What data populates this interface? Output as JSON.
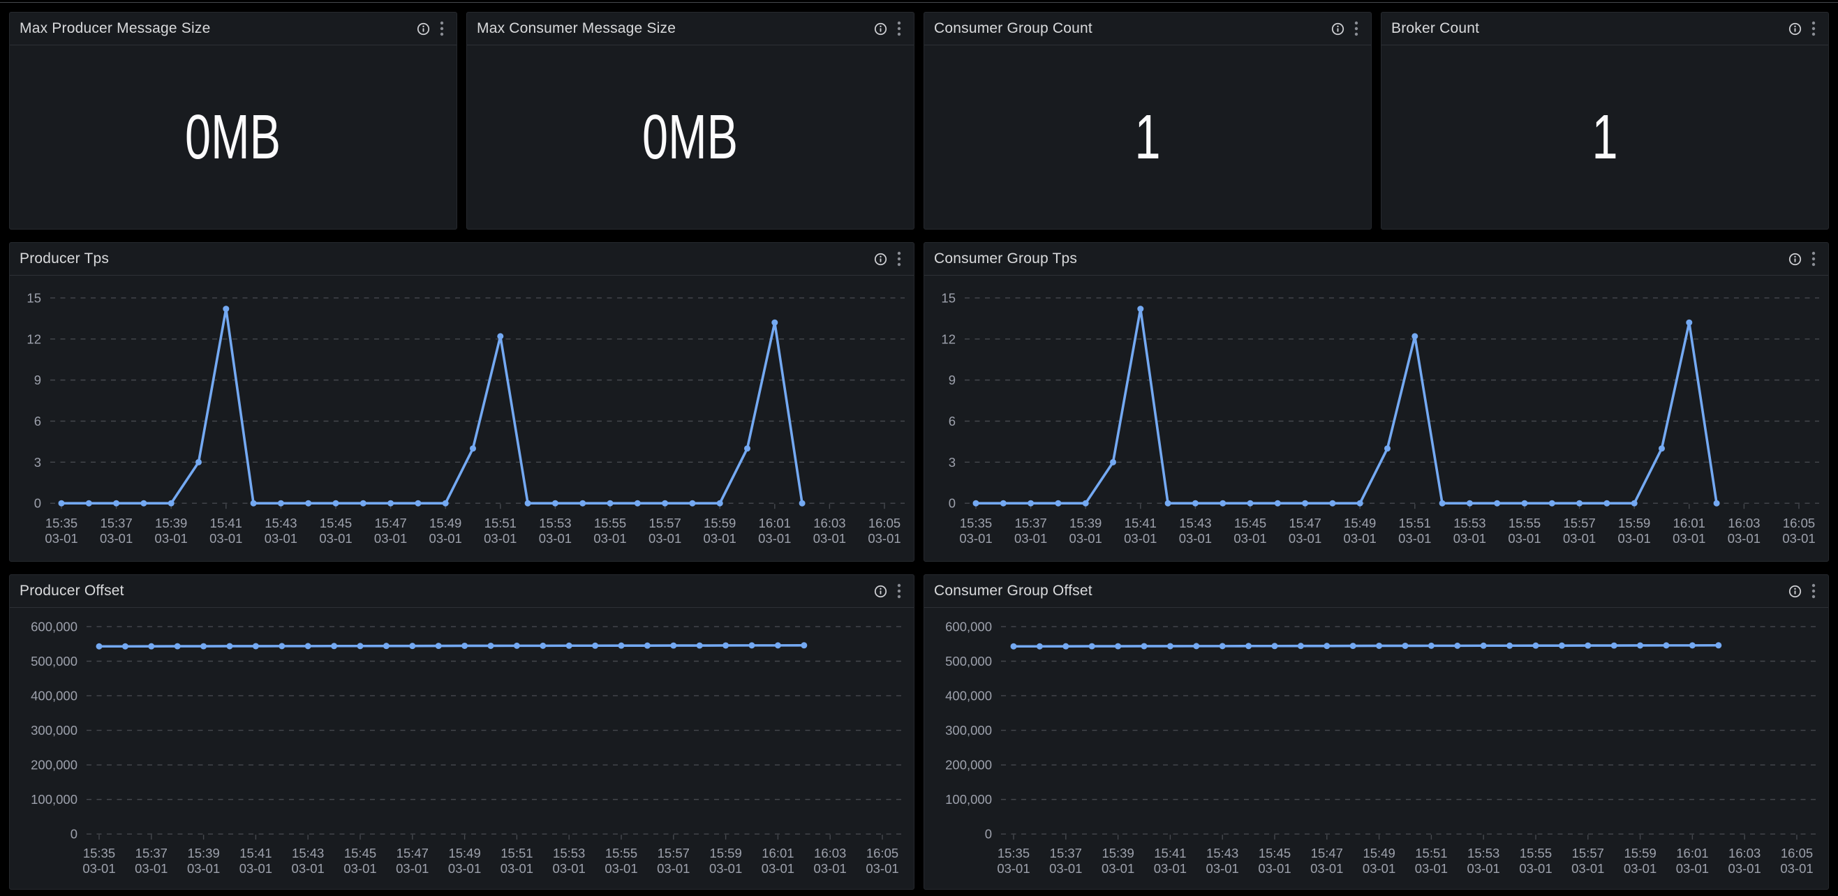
{
  "page": {
    "background": "#000000",
    "panel_background": "#181b1f",
    "top_divider_color": "#46484d",
    "series_color": "#74a9f2",
    "axis_text_color": "#9da1ac",
    "title_text_color": "#d9dadc",
    "grid_line_color": "#45484e"
  },
  "icons": {
    "info": "info-circle-icon",
    "menu": "kebab-vertical-icon"
  },
  "stat_panels": [
    {
      "title": "Max Producer Message Size",
      "value": "0MB"
    },
    {
      "title": "Max Consumer Message Size",
      "value": "0MB"
    },
    {
      "title": "Consumer Group Count",
      "value": "1"
    },
    {
      "title": "Broker Count",
      "value": "1"
    }
  ],
  "chart_data": [
    {
      "type": "line",
      "title": "Producer Tps",
      "x_tick_labels": [
        "15:35",
        "15:37",
        "15:39",
        "15:41",
        "15:43",
        "15:45",
        "15:47",
        "15:49",
        "15:51",
        "15:53",
        "15:55",
        "15:57",
        "15:59",
        "16:01",
        "16:03",
        "16:05"
      ],
      "x_tick_date_label": "03-01",
      "x_point_start": "15:35",
      "x_point_interval_minutes": 1,
      "x_point_end": "16:02",
      "ylim": [
        0,
        15
      ],
      "y_ticks": [
        0,
        3,
        6,
        9,
        12,
        15
      ],
      "grid": "horizontal-dashed",
      "legend": "none",
      "line_color": "#74a9f2",
      "values": [
        0,
        0,
        0,
        0,
        0,
        3,
        14.2,
        0,
        0,
        0,
        0,
        0,
        0,
        0,
        0,
        4,
        12.2,
        0,
        0,
        0,
        0,
        0,
        0,
        0,
        0,
        4,
        13.2,
        0
      ]
    },
    {
      "type": "line",
      "title": "Consumer Group Tps",
      "x_tick_labels": [
        "15:35",
        "15:37",
        "15:39",
        "15:41",
        "15:43",
        "15:45",
        "15:47",
        "15:49",
        "15:51",
        "15:53",
        "15:55",
        "15:57",
        "15:59",
        "16:01",
        "16:03",
        "16:05"
      ],
      "x_tick_date_label": "03-01",
      "x_point_start": "15:35",
      "x_point_interval_minutes": 1,
      "x_point_end": "16:02",
      "ylim": [
        0,
        15
      ],
      "y_ticks": [
        0,
        3,
        6,
        9,
        12,
        15
      ],
      "grid": "horizontal-dashed",
      "legend": "none",
      "line_color": "#74a9f2",
      "values": [
        0,
        0,
        0,
        0,
        0,
        3,
        14.2,
        0,
        0,
        0,
        0,
        0,
        0,
        0,
        0,
        4,
        12.2,
        0,
        0,
        0,
        0,
        0,
        0,
        0,
        0,
        4,
        13.2,
        0
      ]
    },
    {
      "type": "line",
      "title": "Producer Offset",
      "x_tick_labels": [
        "15:35",
        "15:37",
        "15:39",
        "15:41",
        "15:43",
        "15:45",
        "15:47",
        "15:49",
        "15:51",
        "15:53",
        "15:55",
        "15:57",
        "15:59",
        "16:01",
        "16:03",
        "16:05"
      ],
      "x_tick_date_label": "03-01",
      "x_point_start": "15:35",
      "x_point_interval_minutes": 1,
      "x_point_end": "16:02",
      "ylim": [
        0,
        600000
      ],
      "y_ticks": [
        0,
        100000,
        200000,
        300000,
        400000,
        500000,
        600000
      ],
      "grid": "horizontal-dashed",
      "legend": "none",
      "line_color": "#74a9f2",
      "values": [
        542800,
        542910,
        543020,
        543130,
        543240,
        543350,
        543460,
        543570,
        543680,
        543790,
        543900,
        544010,
        544120,
        544230,
        544340,
        544450,
        544560,
        544670,
        544780,
        544890,
        545000,
        545110,
        545220,
        545330,
        545440,
        545550,
        545660,
        545770
      ]
    },
    {
      "type": "line",
      "title": "Consumer Group Offset",
      "x_tick_labels": [
        "15:35",
        "15:37",
        "15:39",
        "15:41",
        "15:43",
        "15:45",
        "15:47",
        "15:49",
        "15:51",
        "15:53",
        "15:55",
        "15:57",
        "15:59",
        "16:01",
        "16:03",
        "16:05"
      ],
      "x_tick_date_label": "03-01",
      "x_point_start": "15:35",
      "x_point_interval_minutes": 1,
      "x_point_end": "16:02",
      "ylim": [
        0,
        600000
      ],
      "y_ticks": [
        0,
        100000,
        200000,
        300000,
        400000,
        500000,
        600000
      ],
      "grid": "horizontal-dashed",
      "legend": "none",
      "line_color": "#74a9f2",
      "values": [
        542800,
        542910,
        543020,
        543130,
        543240,
        543350,
        543460,
        543570,
        543680,
        543790,
        543900,
        544010,
        544120,
        544230,
        544340,
        544450,
        544560,
        544670,
        544780,
        544890,
        545000,
        545110,
        545220,
        545330,
        545440,
        545550,
        545660,
        545770
      ]
    }
  ]
}
